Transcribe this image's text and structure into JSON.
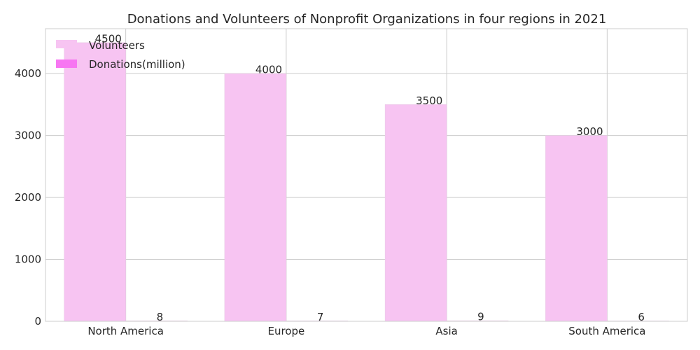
{
  "chart_data": {
    "type": "bar",
    "title": "Donations and Volunteers of Nonprofit Organizations in four regions in 2021",
    "xlabel": "",
    "ylabel": "",
    "categories": [
      "North America",
      "Europe",
      "Asia",
      "South America"
    ],
    "series": [
      {
        "name": "Volunteers",
        "values": [
          4500,
          4000,
          3500,
          3000
        ],
        "color": "#f7c4f2"
      },
      {
        "name": "Donations(million)",
        "values": [
          8,
          7,
          9,
          6
        ],
        "color": "#f776f2"
      }
    ],
    "ylim": [
      0,
      4725
    ],
    "yticks": [
      0,
      1000,
      2000,
      3000,
      4000
    ],
    "grid": true,
    "legend": "top-left"
  }
}
